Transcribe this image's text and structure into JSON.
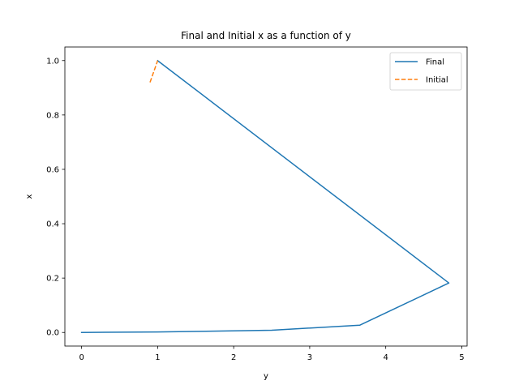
{
  "chart_data": {
    "type": "line",
    "title": "Final and Initial x as a function of y",
    "xlabel": "y",
    "ylabel": "x",
    "xlim": [
      -0.22,
      5.07
    ],
    "ylim": [
      -0.05,
      1.05
    ],
    "xticks": [
      0,
      1,
      2,
      3,
      4,
      5
    ],
    "xtick_labels": [
      "0",
      "1",
      "2",
      "3",
      "4",
      "5"
    ],
    "yticks": [
      0.0,
      0.2,
      0.4,
      0.6,
      0.8,
      1.0
    ],
    "ytick_labels": [
      "0.0",
      "0.2",
      "0.4",
      "0.6",
      "0.8",
      "1.0"
    ],
    "grid": false,
    "legend": "upper right",
    "series": [
      {
        "name": "Final",
        "color": "#1f77b4",
        "style": "solid",
        "points": [
          [
            0.0,
            0.0
          ],
          [
            1.0,
            0.002
          ],
          [
            2.5,
            0.008
          ],
          [
            3.66,
            0.027
          ],
          [
            4.83,
            0.182
          ],
          [
            1.0,
            1.0
          ]
        ]
      },
      {
        "name": "Initial",
        "color": "#ff7f0e",
        "style": "dashed",
        "points": [
          [
            0.9,
            0.92
          ],
          [
            1.0,
            1.0
          ]
        ]
      }
    ]
  }
}
